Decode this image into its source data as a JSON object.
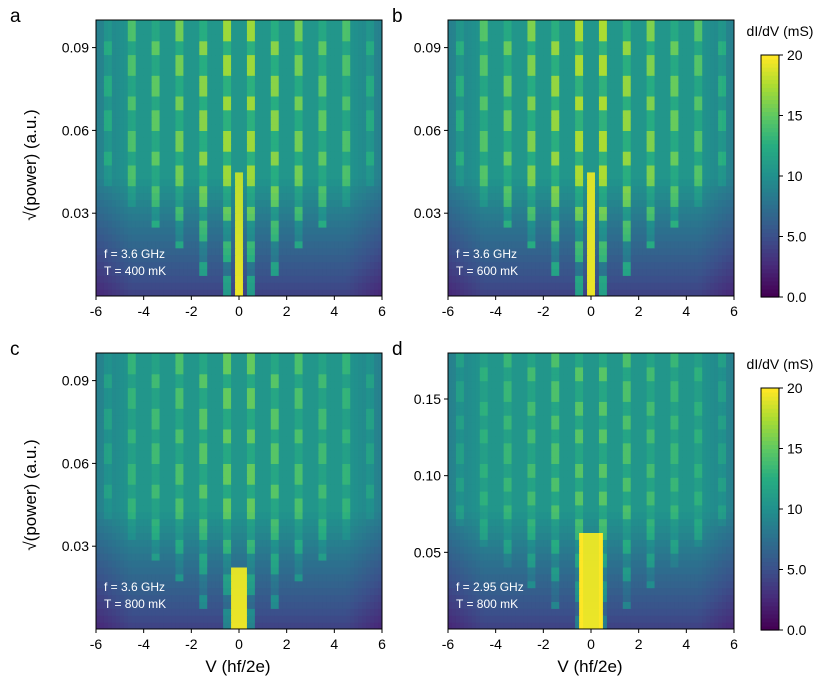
{
  "chart_data": [
    {
      "panel": "a",
      "type": "heatmap",
      "xlabel": "V (hf/2e)",
      "ylabel": "√(power) (a.u.)",
      "xlim": [
        -6,
        6
      ],
      "ylim": [
        0,
        0.1
      ],
      "xticks": [
        "-6",
        "-4",
        "-2",
        "0",
        "2",
        "4",
        "6"
      ],
      "yticks": [
        "0.03",
        "0.06",
        "0.09"
      ],
      "ytick_values": [
        0.03,
        0.06,
        0.09
      ],
      "annotation": [
        "f = 3.6 GHz",
        "T = 400 mK"
      ],
      "f_GHz": 3.6,
      "T_mK": 400,
      "zero_bias_peak_top": 0.046,
      "zero_bias_width": 0.45
    },
    {
      "panel": "b",
      "type": "heatmap",
      "xlabel": "V (hf/2e)",
      "ylabel": "√(power) (a.u.)",
      "xlim": [
        -6,
        6
      ],
      "ylim": [
        0,
        0.1
      ],
      "xticks": [
        "-6",
        "-4",
        "-2",
        "0",
        "2",
        "4",
        "6"
      ],
      "yticks": [
        "0.03",
        "0.06",
        "0.09"
      ],
      "ytick_values": [
        0.03,
        0.06,
        0.09
      ],
      "annotation": [
        "f = 3.6 GHz",
        "T = 600 mK"
      ],
      "f_GHz": 3.6,
      "T_mK": 600,
      "zero_bias_peak_top": 0.044,
      "zero_bias_width": 0.5
    },
    {
      "panel": "c",
      "type": "heatmap",
      "xlabel": "V (hf/2e)",
      "ylabel": "√(power) (a.u.)",
      "xlim": [
        -6,
        6
      ],
      "ylim": [
        0,
        0.1
      ],
      "xticks": [
        "-6",
        "-4",
        "-2",
        "0",
        "2",
        "4",
        "6"
      ],
      "yticks": [
        "0.03",
        "0.06",
        "0.09"
      ],
      "ytick_values": [
        0.03,
        0.06,
        0.09
      ],
      "annotation": [
        "f = 3.6 GHz",
        "T = 800 mK"
      ],
      "f_GHz": 3.6,
      "T_mK": 800,
      "zero_bias_peak_top": 0.023,
      "zero_bias_width": 0.6
    },
    {
      "panel": "d",
      "type": "heatmap",
      "xlabel": "V (hf/2e)",
      "ylabel": "",
      "xlim": [
        -6,
        6
      ],
      "ylim": [
        0,
        0.18
      ],
      "xticks": [
        "-6",
        "-4",
        "-2",
        "0",
        "2",
        "4",
        "6"
      ],
      "yticks": [
        "0.05",
        "0.10",
        "0.15"
      ],
      "ytick_values": [
        0.05,
        0.1,
        0.15
      ],
      "annotation": [
        "f = 2.95 GHz",
        "T = 800 mK"
      ],
      "f_GHz": 2.95,
      "T_mK": 800,
      "zero_bias_peak_top": 0.063,
      "zero_bias_width": 0.85
    }
  ],
  "colorbar": {
    "title": "dI/dV (mS)",
    "range": [
      0,
      20
    ],
    "ticks": [
      "0.0",
      "5.0",
      "10",
      "15",
      "20"
    ],
    "tick_values": [
      0,
      5,
      10,
      15,
      20
    ],
    "colors": [
      "#440154",
      "#3b528b",
      "#21908c",
      "#5ec962",
      "#fde725"
    ]
  },
  "labels": {
    "x_axis": "V (hf/2e)",
    "y_axis": "√(power) (a.u.)",
    "cbar_top": "dI/dV (mS)",
    "cbar_bottom": "dI/dV (mS)"
  }
}
